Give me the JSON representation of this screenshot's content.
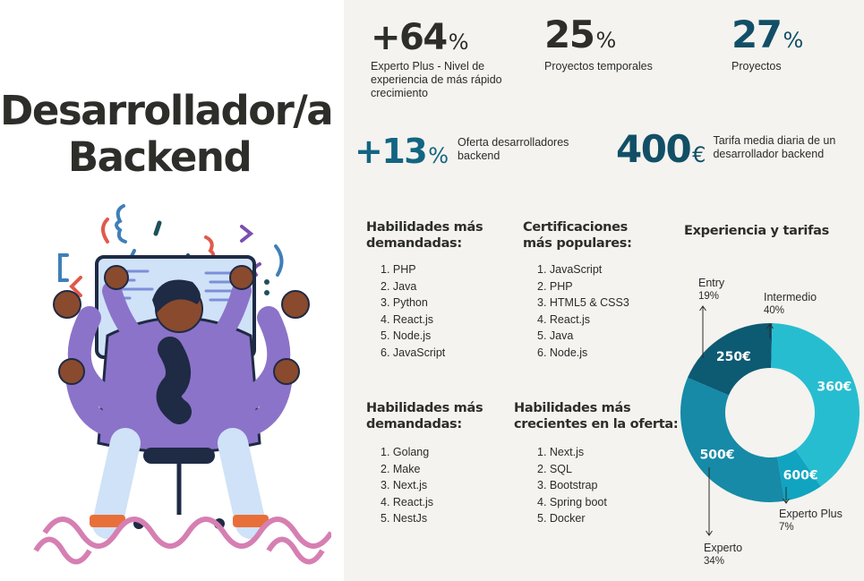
{
  "title": {
    "line1": "Desarrollador/a",
    "line2": "Backend"
  },
  "stats": {
    "s1": {
      "value": "+64",
      "unit": "%",
      "desc": [
        "Experto Plus - Nivel de",
        "experiencia de más rápido",
        "crecimiento"
      ]
    },
    "s2": {
      "value": "25",
      "unit": "%",
      "desc": [
        "Proyectos temporales"
      ]
    },
    "s3": {
      "value": "27",
      "unit": "%",
      "desc": [
        "Proyectos"
      ]
    },
    "s4": {
      "value": "+13",
      "unit": "%",
      "desc": [
        "Oferta desarrolladores",
        "backend"
      ]
    },
    "s5": {
      "value": "400",
      "unit": "€",
      "desc": [
        "Tarifa media diaria de un",
        "desarrollador backend"
      ]
    }
  },
  "skills_top": {
    "title": [
      "Habilidades más",
      "demandadas:"
    ],
    "items": [
      "1. PHP",
      "2. Java",
      "3. Python",
      "4. React.js",
      "5. Node.js",
      "6. JavaScript"
    ]
  },
  "certifications": {
    "title": [
      "Certificaciones",
      "más populares:"
    ],
    "items": [
      "1. JavaScript",
      "2. PHP",
      "3. HTML5 & CSS3",
      "4. React.js",
      "5. Java",
      "6. Node.js"
    ]
  },
  "skills_bottom": {
    "title": [
      "Habilidades más",
      "demandadas:"
    ],
    "items": [
      "1. Golang",
      "2. Make",
      "3. Next.js",
      "4. React.js",
      "5. NestJs"
    ]
  },
  "growing": {
    "title": [
      "Habilidades más",
      "crecientes en la oferta:"
    ],
    "items": [
      "1. Next.js",
      "2. SQL",
      "3. Bootstrap",
      "4. Spring boot",
      "5. Docker"
    ]
  },
  "chart_data": {
    "type": "pie",
    "title": "Experiencia y tarifas",
    "categories": [
      "Entry",
      "Intermedio",
      "Experto Plus",
      "Experto"
    ],
    "values": [
      19,
      40,
      7,
      34
    ],
    "percent_labels": [
      "19%",
      "40%",
      "7%",
      "34%"
    ],
    "rate_labels": [
      "250€",
      "360€",
      "600€",
      "500€"
    ],
    "colors": [
      "#0d5a73",
      "#27bdd0",
      "#10a4c1",
      "#168aa7"
    ],
    "donut": true
  }
}
